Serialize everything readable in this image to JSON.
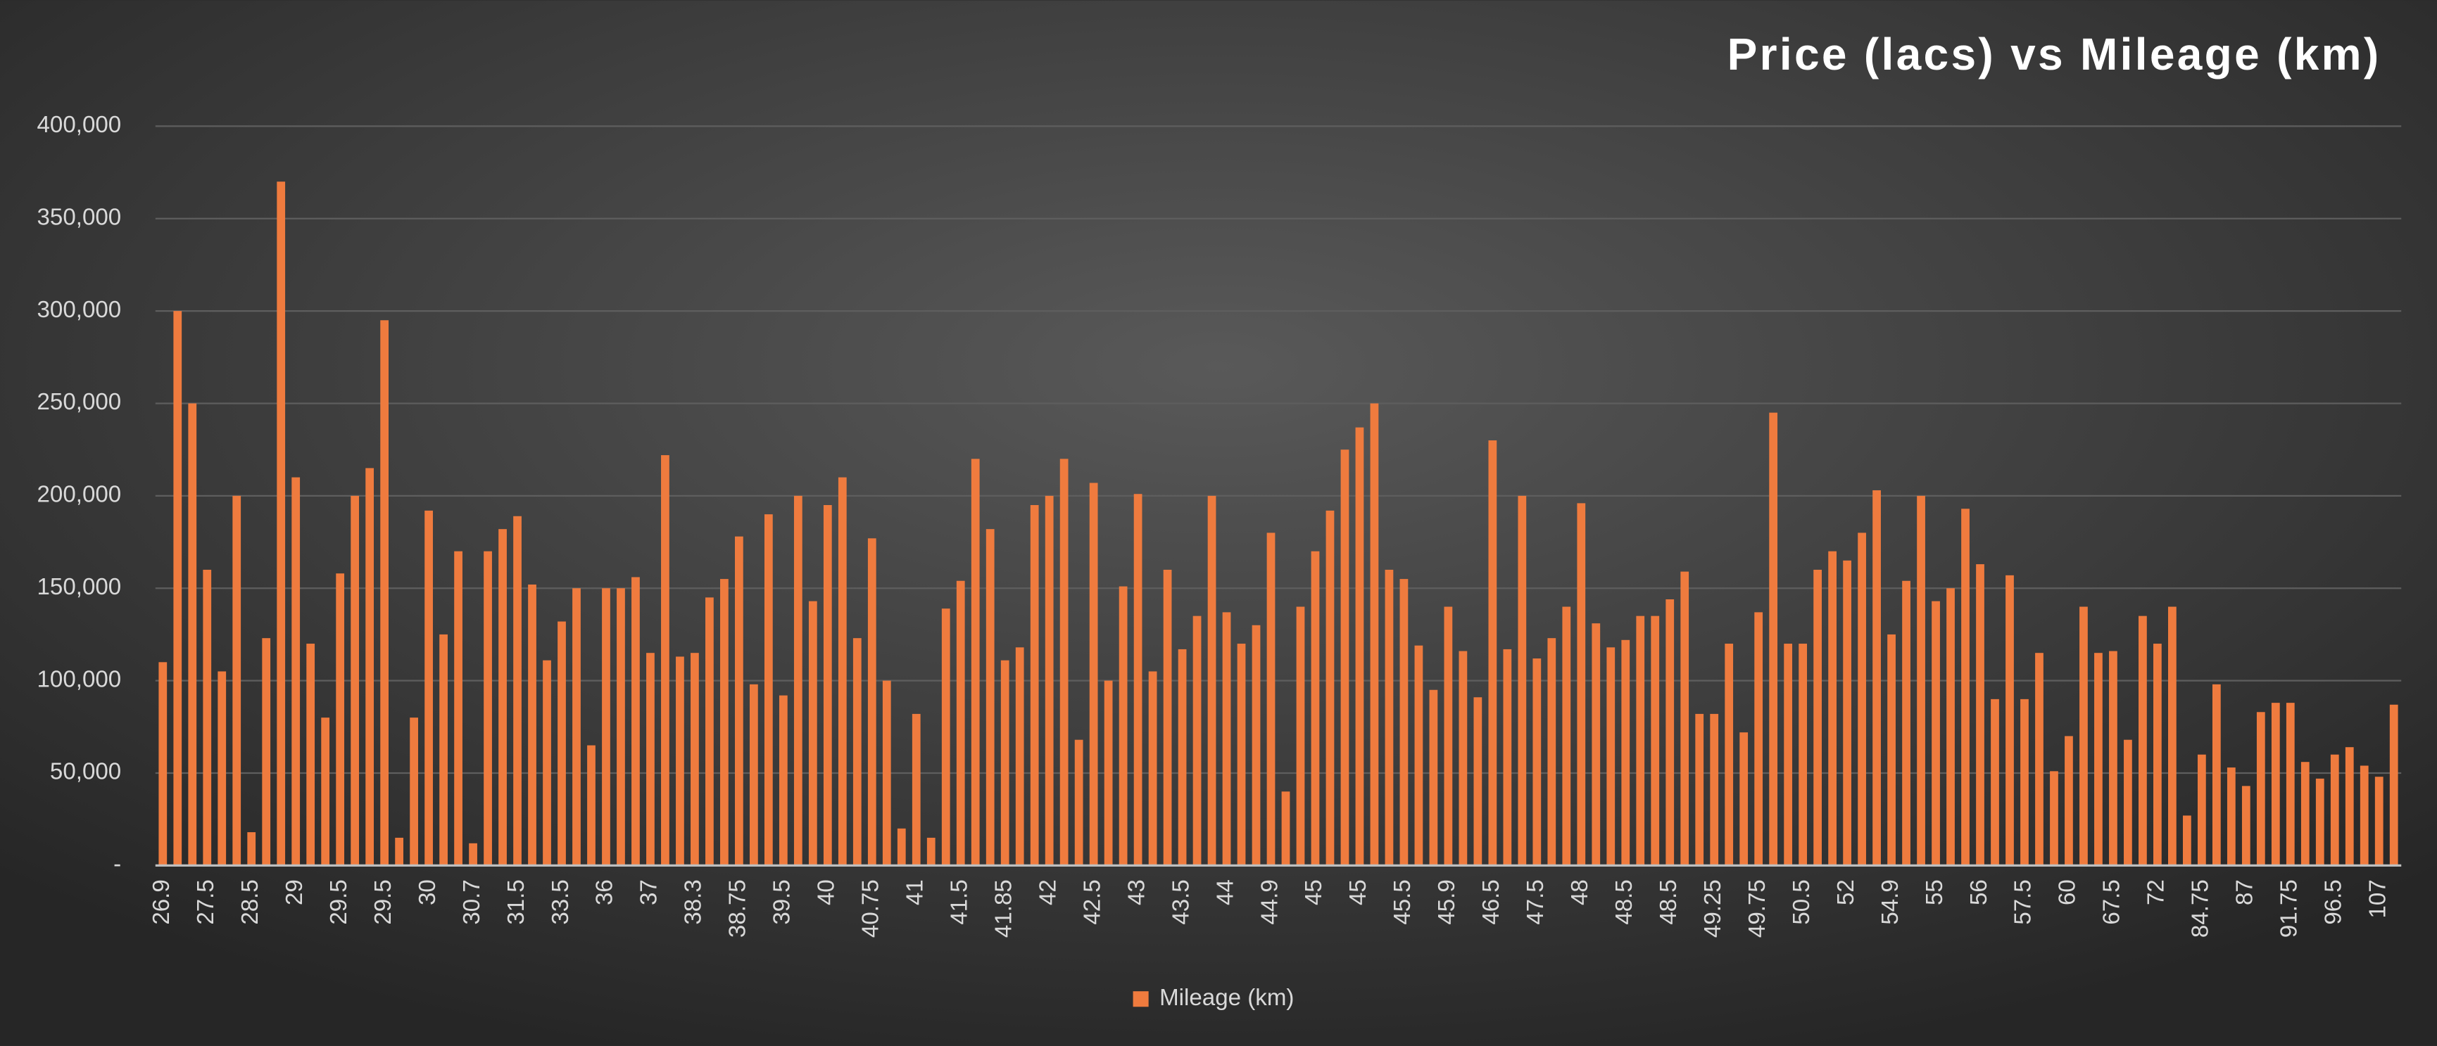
{
  "chart_data": {
    "type": "bar",
    "title": "Price (lacs) vs Mileage (km)",
    "categories": [
      "26.9",
      null,
      null,
      "27.5",
      null,
      null,
      "28.5",
      null,
      null,
      "29",
      null,
      null,
      "29.5",
      null,
      null,
      "29.5",
      null,
      null,
      "30",
      null,
      null,
      "30.7",
      null,
      null,
      "31.5",
      null,
      null,
      "33.5",
      null,
      null,
      "36",
      null,
      null,
      "37",
      null,
      null,
      "38.3",
      null,
      null,
      "38.75",
      null,
      null,
      "39.5",
      null,
      null,
      "40",
      null,
      null,
      "40.75",
      null,
      null,
      "41",
      null,
      null,
      "41.5",
      null,
      null,
      "41.85",
      null,
      null,
      "42",
      null,
      null,
      "42.5",
      null,
      null,
      "43",
      null,
      null,
      "43.5",
      null,
      null,
      "44",
      null,
      null,
      "44.9",
      null,
      null,
      "45",
      null,
      null,
      "45",
      null,
      null,
      "45.5",
      null,
      null,
      "45.9",
      null,
      null,
      "46.5",
      null,
      null,
      "47.5",
      null,
      null,
      "48",
      null,
      null,
      "48.5",
      null,
      null,
      "48.5",
      null,
      null,
      "49.25",
      null,
      null,
      "49.75",
      null,
      null,
      "50.5",
      null,
      null,
      "52",
      null,
      null,
      "54.9",
      null,
      null,
      "55",
      null,
      null,
      "56",
      null,
      null,
      "57.5",
      null,
      null,
      "60",
      null,
      null,
      "67.5",
      null,
      null,
      "72",
      null,
      null,
      "84.75",
      null,
      null,
      "87",
      null,
      null,
      "91.75",
      null,
      null,
      "96.5",
      null,
      null,
      "107",
      null
    ],
    "series": [
      {
        "name": "Mileage (km)",
        "color": "#ef7b3e",
        "values": [
          110000,
          300000,
          250000,
          160000,
          105000,
          200000,
          18000,
          123000,
          370000,
          210000,
          120000,
          80000,
          158000,
          200000,
          215000,
          295000,
          15000,
          80000,
          192000,
          125000,
          170000,
          12000,
          170000,
          182000,
          189000,
          152000,
          111000,
          132000,
          150000,
          65000,
          150000,
          150000,
          156000,
          115000,
          222000,
          113000,
          115000,
          145000,
          155000,
          178000,
          98000,
          190000,
          92000,
          200000,
          143000,
          195000,
          210000,
          123000,
          177000,
          100000,
          20000,
          82000,
          15000,
          139000,
          154000,
          220000,
          182000,
          111000,
          118000,
          195000,
          200000,
          220000,
          68000,
          207000,
          100000,
          151000,
          201000,
          105000,
          160000,
          117000,
          135000,
          200000,
          137000,
          120000,
          130000,
          180000,
          40000,
          140000,
          170000,
          192000,
          225000,
          237000,
          250000,
          160000,
          155000,
          119000,
          95000,
          140000,
          116000,
          91000,
          230000,
          117000,
          200000,
          112000,
          123000,
          140000,
          196000,
          131000,
          118000,
          122000,
          135000,
          135000,
          144000,
          159000,
          82000,
          82000,
          120000,
          72000,
          137000,
          245000,
          120000,
          120000,
          160000,
          170000,
          165000,
          180000,
          203000,
          125000,
          154000,
          200000,
          143000,
          150000,
          193000,
          163000,
          90000,
          157000,
          90000,
          115000,
          51000,
          70000,
          140000,
          115000,
          116000,
          68000,
          135000,
          120000,
          140000,
          27000,
          60000,
          98000,
          53000,
          43000,
          83000,
          88000,
          88000,
          56000,
          47000,
          60000,
          64000,
          54000,
          48000,
          87000
        ]
      }
    ],
    "ylim": [
      0,
      400000
    ],
    "yticks": [
      {
        "value": 0,
        "label": "-"
      },
      {
        "value": 50000,
        "label": "50,000"
      },
      {
        "value": 100000,
        "label": "100,000"
      },
      {
        "value": 150000,
        "label": "150,000"
      },
      {
        "value": 200000,
        "label": "200,000"
      },
      {
        "value": 250000,
        "label": "250,000"
      },
      {
        "value": 300000,
        "label": "300,000"
      },
      {
        "value": 350000,
        "label": "350,000"
      },
      {
        "value": 400000,
        "label": "400,000"
      }
    ],
    "grid": true,
    "legend": "bottom"
  }
}
